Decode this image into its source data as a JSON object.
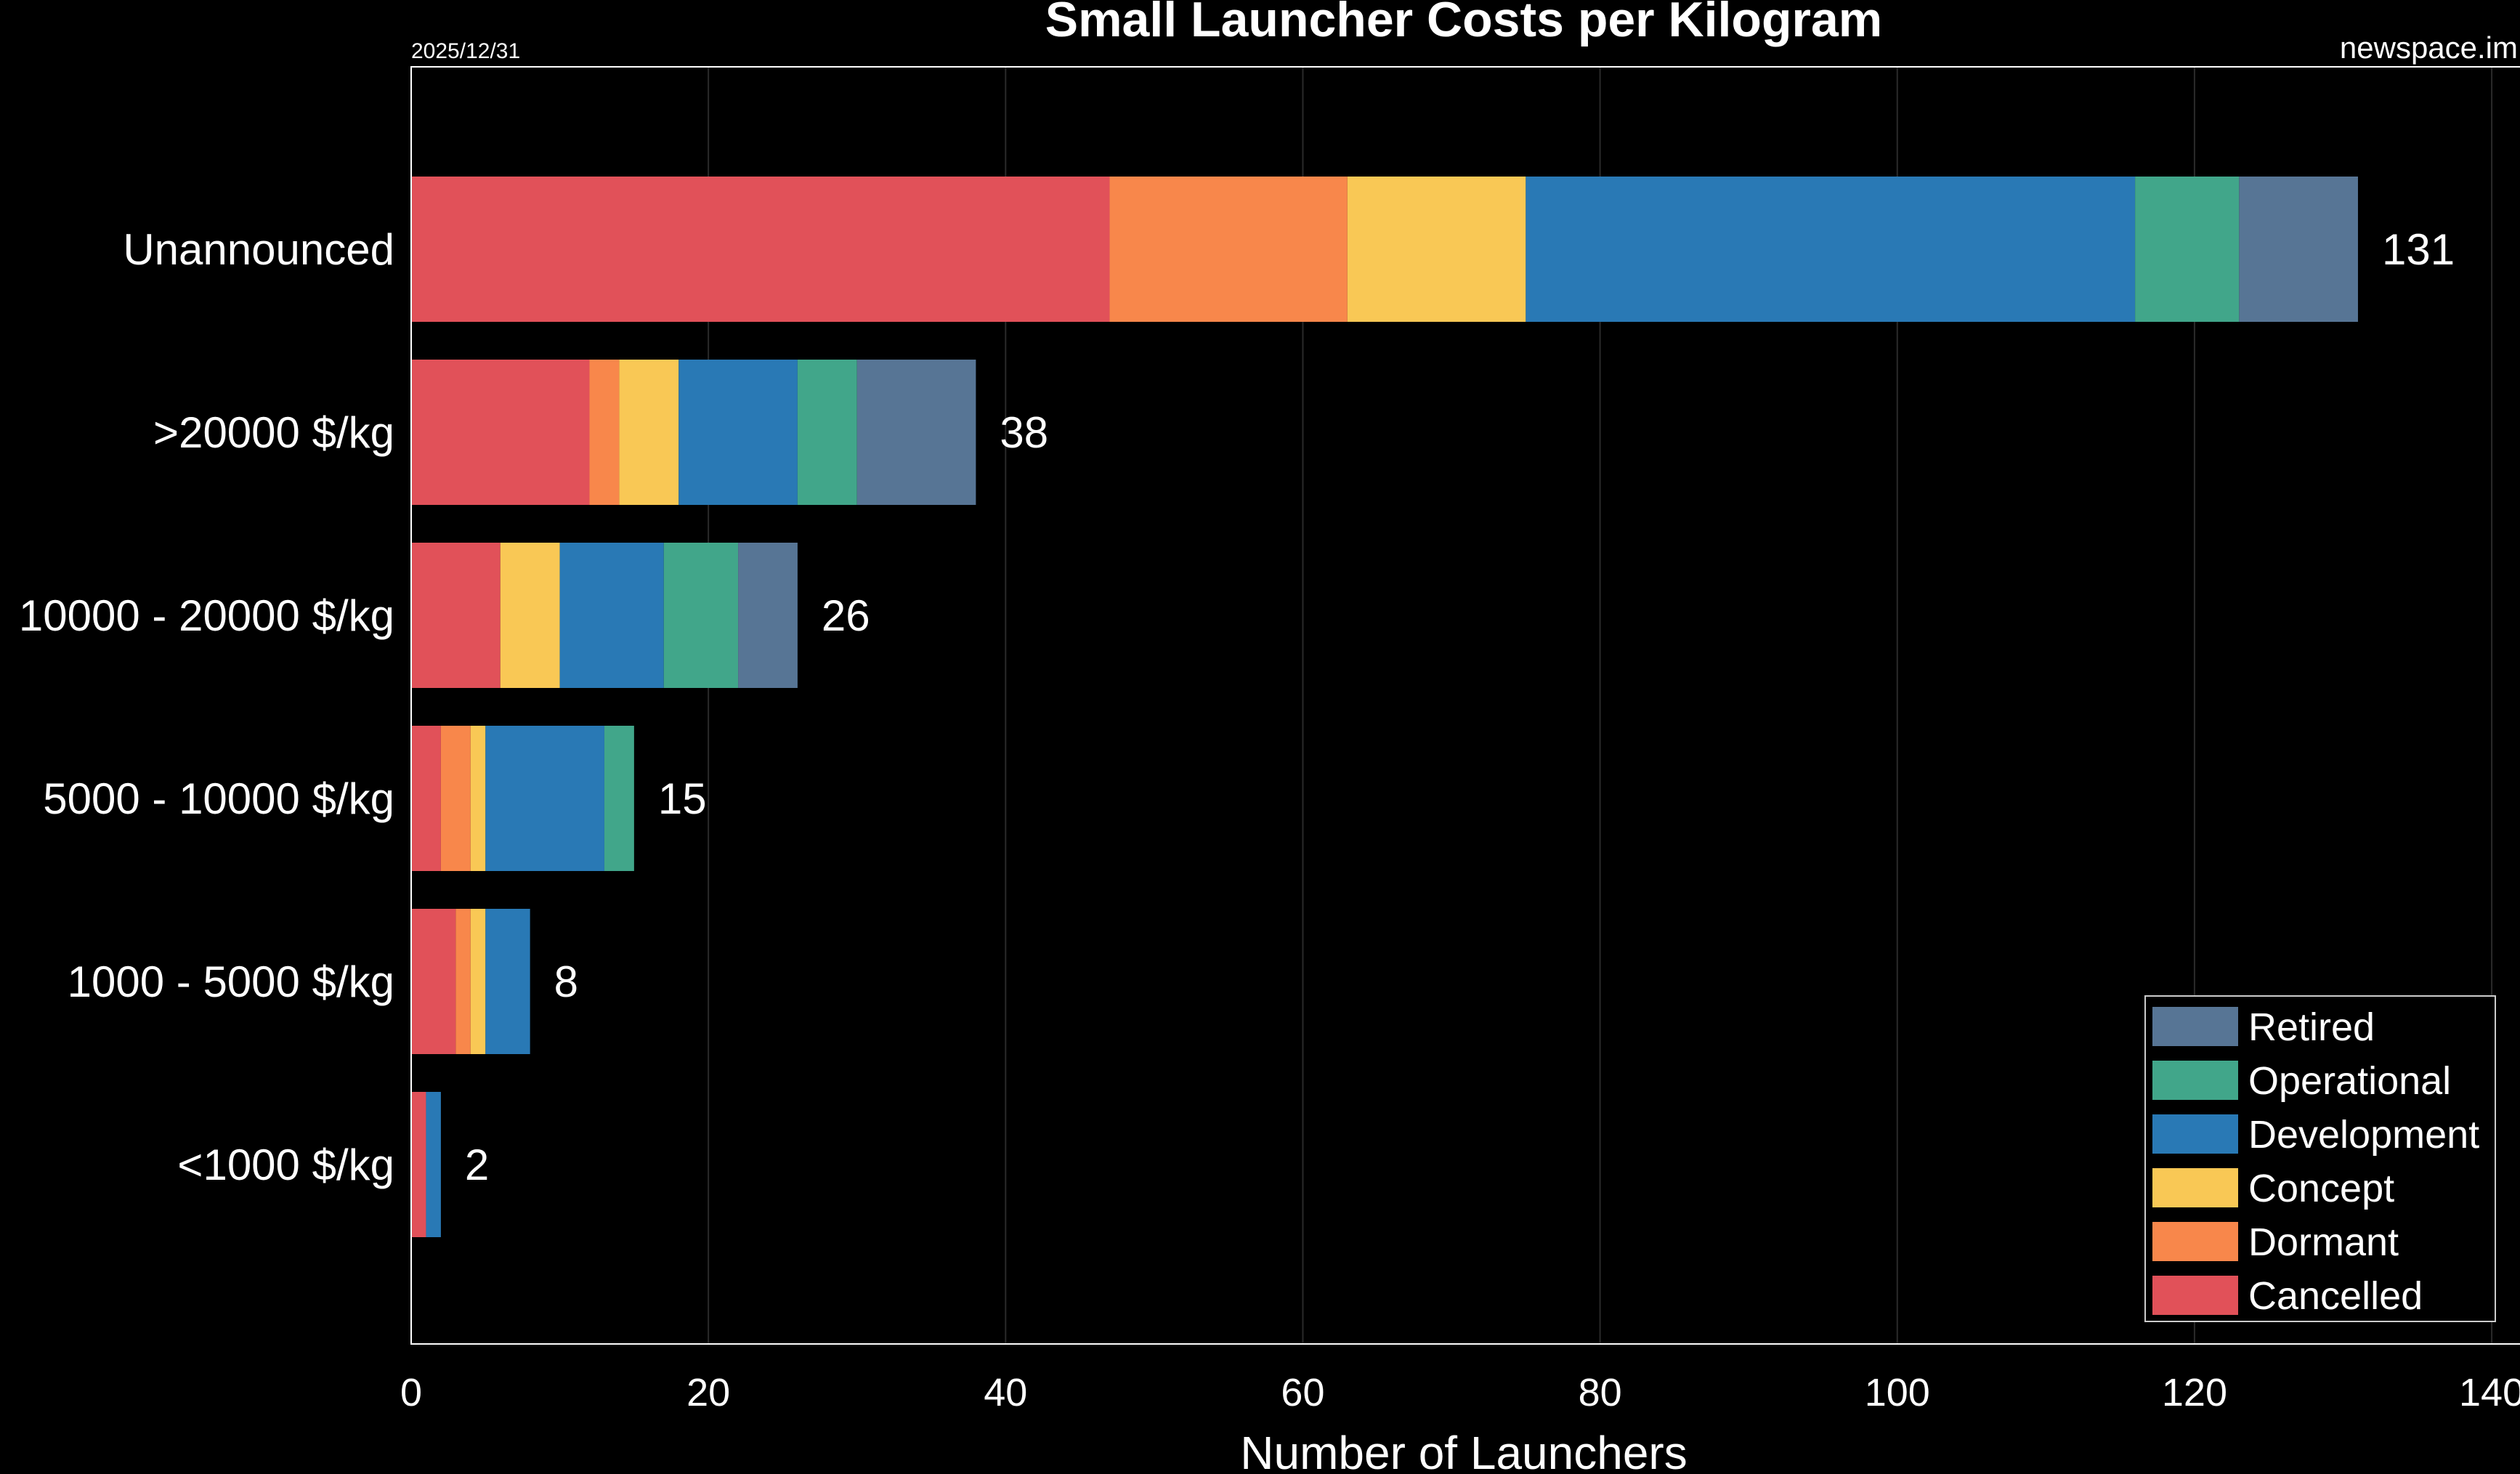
{
  "chart_data": {
    "type": "bar",
    "orientation": "horizontal",
    "stacked": true,
    "title": "Small Launcher Costs per Kilogram",
    "date": "2025/12/31",
    "source": "newspace.im",
    "xlabel": "Number of Launchers",
    "ylabel": "",
    "xlim": [
      0,
      142
    ],
    "xticks": [
      0,
      20,
      40,
      60,
      80,
      100,
      120,
      140
    ],
    "grid": "vertical",
    "legend_position": "bottom-right",
    "categories": [
      "Unannounced",
      ">20000 $/kg",
      "10000 - 20000 $/kg",
      "5000 - 10000 $/kg",
      "1000 - 5000 $/kg",
      "<1000 $/kg"
    ],
    "totals": [
      131,
      38,
      26,
      15,
      8,
      2
    ],
    "series": [
      {
        "name": "Cancelled",
        "color": "#e15159",
        "values": [
          47,
          12,
          6,
          2,
          3,
          1
        ]
      },
      {
        "name": "Dormant",
        "color": "#f8874b",
        "values": [
          16,
          2,
          0,
          2,
          1,
          0
        ]
      },
      {
        "name": "Concept",
        "color": "#f9c855",
        "values": [
          12,
          4,
          4,
          1,
          1,
          0
        ]
      },
      {
        "name": "Development",
        "color": "#2979b5",
        "values": [
          41,
          8,
          7,
          8,
          3,
          1
        ]
      },
      {
        "name": "Operational",
        "color": "#41a68a",
        "values": [
          7,
          4,
          5,
          2,
          0,
          0
        ]
      },
      {
        "name": "Retired",
        "color": "#577595",
        "values": [
          8,
          8,
          4,
          0,
          0,
          0
        ]
      }
    ],
    "legend_order": [
      "Retired",
      "Operational",
      "Development",
      "Concept",
      "Dormant",
      "Cancelled"
    ]
  }
}
